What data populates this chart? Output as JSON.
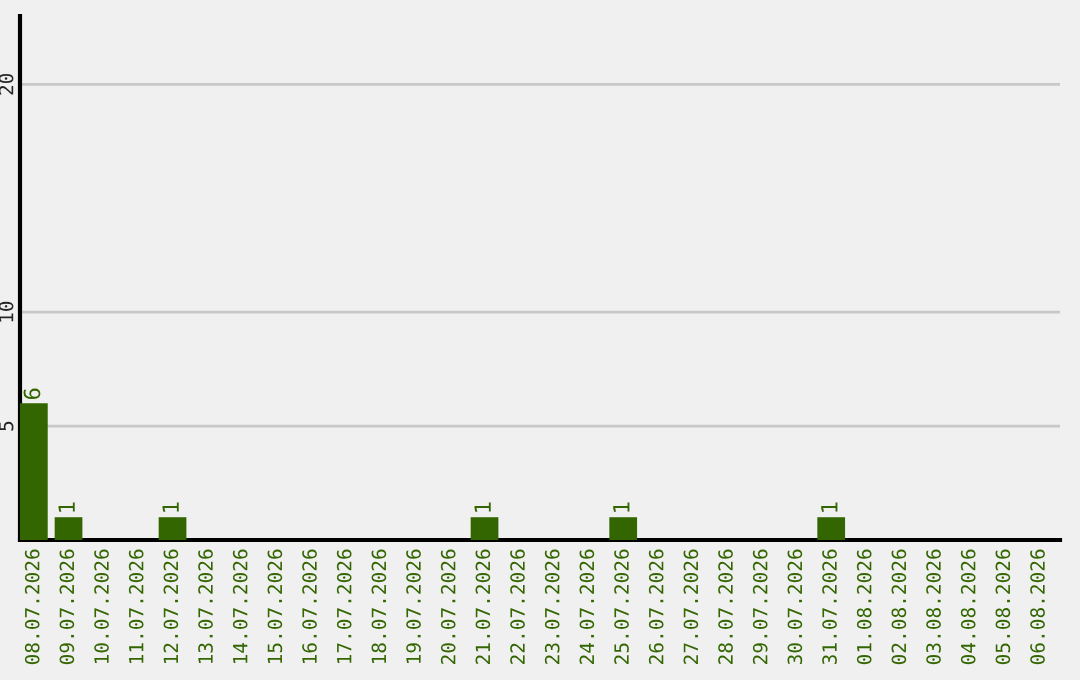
{
  "chart_data": {
    "type": "bar",
    "categories": [
      "08.07.2026",
      "09.07.2026",
      "10.07.2026",
      "11.07.2026",
      "12.07.2026",
      "13.07.2026",
      "14.07.2026",
      "15.07.2026",
      "16.07.2026",
      "17.07.2026",
      "18.07.2026",
      "19.07.2026",
      "20.07.2026",
      "21.07.2026",
      "22.07.2026",
      "23.07.2026",
      "24.07.2026",
      "25.07.2026",
      "26.07.2026",
      "27.07.2026",
      "28.07.2026",
      "29.07.2026",
      "30.07.2026",
      "31.07.2026",
      "01.08.2026",
      "02.08.2026",
      "03.08.2026",
      "04.08.2026",
      "05.08.2026",
      "06.08.2026"
    ],
    "values": [
      6,
      1,
      0,
      0,
      1,
      0,
      0,
      0,
      0,
      0,
      0,
      0,
      0,
      1,
      0,
      0,
      0,
      1,
      0,
      0,
      0,
      0,
      0,
      1,
      0,
      0,
      0,
      0,
      0,
      0
    ],
    "value_labels": [
      "6",
      "1",
      null,
      null,
      "1",
      null,
      null,
      null,
      null,
      null,
      null,
      null,
      null,
      "1",
      null,
      null,
      null,
      "1",
      null,
      null,
      null,
      null,
      null,
      "1",
      null,
      null,
      null,
      null,
      null,
      null
    ],
    "color": "#336600",
    "ylim": [
      0,
      23
    ],
    "yticks": [
      5,
      10,
      20
    ],
    "grid": "y",
    "legend": false
  }
}
